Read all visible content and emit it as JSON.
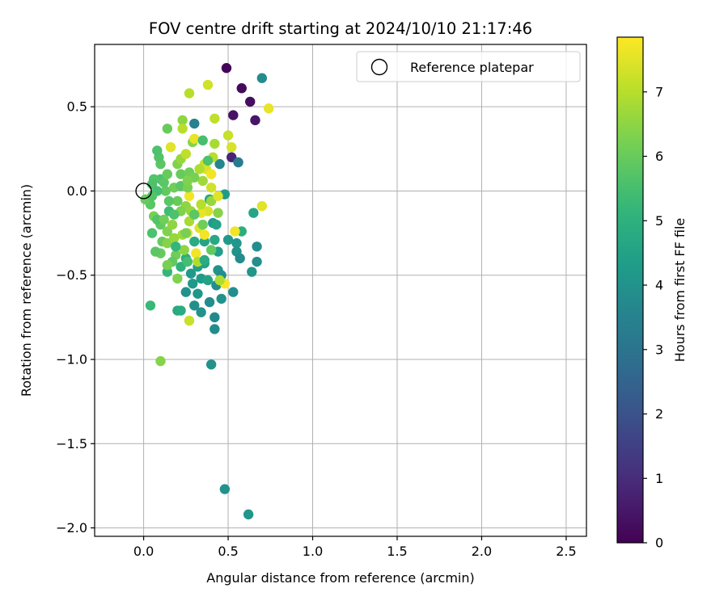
{
  "chart_data": {
    "type": "scatter",
    "title": "FOV centre drift starting at 2024/10/10 21:17:46",
    "xlabel": "Angular distance from reference (arcmin)",
    "ylabel": "Rotation from reference (arcmin)",
    "xlim": [
      -0.29,
      2.62
    ],
    "ylim": [
      -2.05,
      0.87
    ],
    "xticks": [
      0.0,
      0.5,
      1.0,
      1.5,
      2.0,
      2.5
    ],
    "xtick_labels": [
      "0.0",
      "0.5",
      "1.0",
      "1.5",
      "2.0",
      "2.5"
    ],
    "yticks": [
      0.5,
      0.0,
      -0.5,
      -1.0,
      -1.5,
      -2.0
    ],
    "ytick_labels": [
      "0.5",
      "0.0",
      "−0.5",
      "−1.0",
      "−1.5",
      "−2.0"
    ],
    "grid": true,
    "legend": {
      "position": "top-right",
      "label": "Reference platepar"
    },
    "reference_point": {
      "x": 0.0,
      "y": 0.0
    },
    "colorbar": {
      "label": "Hours from first FF file",
      "range": [
        0,
        7.85
      ],
      "ticks": [
        0,
        1,
        2,
        3,
        4,
        5,
        6,
        7
      ],
      "tick_labels": [
        "0",
        "1",
        "2",
        "3",
        "4",
        "5",
        "6",
        "7"
      ],
      "colormap": "viridis",
      "colors": [
        "#440154",
        "#482878",
        "#3e4989",
        "#31688e",
        "#26828e",
        "#1f9e89",
        "#35b779",
        "#6ece58",
        "#b5de2b",
        "#fde725"
      ]
    },
    "points": [
      {
        "x": 0.49,
        "y": 0.73,
        "h": 0.1
      },
      {
        "x": 0.58,
        "y": 0.61,
        "h": 0.2
      },
      {
        "x": 0.63,
        "y": 0.53,
        "h": 0.3
      },
      {
        "x": 0.53,
        "y": 0.45,
        "h": 0.4
      },
      {
        "x": 0.66,
        "y": 0.42,
        "h": 0.5
      },
      {
        "x": 0.52,
        "y": 0.2,
        "h": 0.8
      },
      {
        "x": 0.7,
        "y": 0.67,
        "h": 3.8
      },
      {
        "x": 0.3,
        "y": 0.4,
        "h": 3.5
      },
      {
        "x": 0.56,
        "y": 0.17,
        "h": 3.3
      },
      {
        "x": 0.45,
        "y": 0.16,
        "h": 3.6
      },
      {
        "x": 0.48,
        "y": -0.02,
        "h": 4.3
      },
      {
        "x": 0.65,
        "y": -0.13,
        "h": 4.6
      },
      {
        "x": 0.58,
        "y": -0.24,
        "h": 4.9
      },
      {
        "x": 0.5,
        "y": -0.29,
        "h": 4.2
      },
      {
        "x": 0.55,
        "y": -0.31,
        "h": 4.1
      },
      {
        "x": 0.67,
        "y": -0.33,
        "h": 3.9
      },
      {
        "x": 0.55,
        "y": -0.36,
        "h": 4.0
      },
      {
        "x": 0.57,
        "y": -0.4,
        "h": 3.8
      },
      {
        "x": 0.67,
        "y": -0.42,
        "h": 3.9
      },
      {
        "x": 0.64,
        "y": -0.48,
        "h": 4.1
      },
      {
        "x": 0.44,
        "y": -0.36,
        "h": 4.4
      },
      {
        "x": 0.44,
        "y": -0.47,
        "h": 4.0
      },
      {
        "x": 0.46,
        "y": -0.5,
        "h": 3.9
      },
      {
        "x": 0.43,
        "y": -0.56,
        "h": 3.8
      },
      {
        "x": 0.53,
        "y": -0.6,
        "h": 3.9
      },
      {
        "x": 0.46,
        "y": -0.64,
        "h": 4.0
      },
      {
        "x": 0.39,
        "y": -0.66,
        "h": 3.8
      },
      {
        "x": 0.3,
        "y": -0.68,
        "h": 3.9
      },
      {
        "x": 0.34,
        "y": -0.72,
        "h": 4.0
      },
      {
        "x": 0.42,
        "y": -0.75,
        "h": 3.7
      },
      {
        "x": 0.42,
        "y": -0.82,
        "h": 3.8
      },
      {
        "x": 0.25,
        "y": -0.6,
        "h": 4.0
      },
      {
        "x": 0.32,
        "y": -0.61,
        "h": 4.1
      },
      {
        "x": 0.29,
        "y": -0.55,
        "h": 4.2
      },
      {
        "x": 0.34,
        "y": -0.52,
        "h": 4.3
      },
      {
        "x": 0.38,
        "y": -0.53,
        "h": 4.5
      },
      {
        "x": 0.28,
        "y": -0.49,
        "h": 4.2
      },
      {
        "x": 0.32,
        "y": -0.45,
        "h": 4.4
      },
      {
        "x": 0.4,
        "y": -1.03,
        "h": 4.0
      },
      {
        "x": 0.48,
        "y": -1.77,
        "h": 4.0
      },
      {
        "x": 0.62,
        "y": -1.92,
        "h": 4.1
      },
      {
        "x": 0.41,
        "y": -0.19,
        "h": 4.3
      },
      {
        "x": 0.43,
        "y": -0.2,
        "h": 4.5
      },
      {
        "x": 0.39,
        "y": -0.05,
        "h": 4.7
      },
      {
        "x": 0.36,
        "y": -0.3,
        "h": 4.6
      },
      {
        "x": 0.42,
        "y": -0.29,
        "h": 4.7
      },
      {
        "x": 0.3,
        "y": -0.3,
        "h": 4.8
      },
      {
        "x": 0.25,
        "y": -0.4,
        "h": 4.9
      },
      {
        "x": 0.36,
        "y": -0.43,
        "h": 4.5
      },
      {
        "x": 0.22,
        "y": -0.45,
        "h": 5.0
      },
      {
        "x": 0.14,
        "y": -0.48,
        "h": 5.2
      },
      {
        "x": 0.2,
        "y": -0.71,
        "h": 4.7
      },
      {
        "x": 0.22,
        "y": -0.71,
        "h": 4.8
      },
      {
        "x": 0.04,
        "y": -0.68,
        "h": 5.3
      },
      {
        "x": 0.1,
        "y": -1.01,
        "h": 6.4
      },
      {
        "x": 0.27,
        "y": -0.77,
        "h": 7.2
      },
      {
        "x": 0.19,
        "y": -0.38,
        "h": 6.1
      },
      {
        "x": 0.17,
        "y": -0.42,
        "h": 5.9
      },
      {
        "x": 0.2,
        "y": -0.52,
        "h": 6.3
      },
      {
        "x": 0.14,
        "y": -0.44,
        "h": 6.2
      },
      {
        "x": 0.1,
        "y": -0.37,
        "h": 6.0
      },
      {
        "x": 0.07,
        "y": -0.36,
        "h": 5.8
      },
      {
        "x": 0.11,
        "y": -0.3,
        "h": 6.0
      },
      {
        "x": 0.14,
        "y": -0.31,
        "h": 6.4
      },
      {
        "x": 0.18,
        "y": -0.28,
        "h": 6.6
      },
      {
        "x": 0.05,
        "y": -0.25,
        "h": 5.6
      },
      {
        "x": 0.1,
        "y": -0.2,
        "h": 5.9
      },
      {
        "x": 0.06,
        "y": -0.15,
        "h": 6.2
      },
      {
        "x": 0.04,
        "y": -0.08,
        "h": 5.8
      },
      {
        "x": 0.01,
        "y": -0.05,
        "h": 6.0
      },
      {
        "x": 0.08,
        "y": -0.17,
        "h": 5.7
      },
      {
        "x": 0.12,
        "y": -0.17,
        "h": 6.1
      },
      {
        "x": 0.14,
        "y": -0.24,
        "h": 6.3
      },
      {
        "x": 0.17,
        "y": -0.2,
        "h": 6.5
      },
      {
        "x": 0.23,
        "y": -0.26,
        "h": 6.7
      },
      {
        "x": 0.26,
        "y": -0.25,
        "h": 7.6
      },
      {
        "x": 0.31,
        "y": -0.37,
        "h": 7.7
      },
      {
        "x": 0.32,
        "y": -0.42,
        "h": 6.9
      },
      {
        "x": 0.24,
        "y": -0.35,
        "h": 6.5
      },
      {
        "x": 0.27,
        "y": -0.18,
        "h": 6.8
      },
      {
        "x": 0.33,
        "y": -0.22,
        "h": 7.5
      },
      {
        "x": 0.36,
        "y": -0.26,
        "h": 7.7
      },
      {
        "x": 0.38,
        "y": -0.12,
        "h": 7.4
      },
      {
        "x": 0.34,
        "y": -0.13,
        "h": 7.6
      },
      {
        "x": 0.34,
        "y": -0.08,
        "h": 7.0
      },
      {
        "x": 0.4,
        "y": -0.06,
        "h": 6.6
      },
      {
        "x": 0.44,
        "y": -0.13,
        "h": 6.4
      },
      {
        "x": 0.44,
        "y": -0.03,
        "h": 7.5
      },
      {
        "x": 0.4,
        "y": 0.02,
        "h": 7.3
      },
      {
        "x": 0.27,
        "y": -0.03,
        "h": 7.7
      },
      {
        "x": 0.25,
        "y": -0.09,
        "h": 6.5
      },
      {
        "x": 0.22,
        "y": -0.12,
        "h": 6.3
      },
      {
        "x": 0.28,
        "y": -0.12,
        "h": 6.6
      },
      {
        "x": 0.2,
        "y": -0.06,
        "h": 6.0
      },
      {
        "x": 0.15,
        "y": -0.06,
        "h": 5.8
      },
      {
        "x": 0.13,
        "y": 0.0,
        "h": 5.9
      },
      {
        "x": 0.18,
        "y": 0.02,
        "h": 6.1
      },
      {
        "x": 0.22,
        "y": 0.03,
        "h": 5.8
      },
      {
        "x": 0.26,
        "y": 0.02,
        "h": 6.2
      },
      {
        "x": 0.1,
        "y": 0.07,
        "h": 5.6
      },
      {
        "x": 0.06,
        "y": 0.07,
        "h": 5.7
      },
      {
        "x": 0.12,
        "y": 0.05,
        "h": 5.8
      },
      {
        "x": 0.05,
        "y": 0.04,
        "h": 5.6
      },
      {
        "x": 0.08,
        "y": 0.0,
        "h": 5.5
      },
      {
        "x": 0.05,
        "y": -0.03,
        "h": 5.7
      },
      {
        "x": 0.22,
        "y": 0.1,
        "h": 6.0
      },
      {
        "x": 0.27,
        "y": 0.11,
        "h": 6.1
      },
      {
        "x": 0.2,
        "y": 0.16,
        "h": 6.3
      },
      {
        "x": 0.1,
        "y": 0.16,
        "h": 5.8
      },
      {
        "x": 0.09,
        "y": 0.2,
        "h": 5.7
      },
      {
        "x": 0.08,
        "y": 0.24,
        "h": 5.6
      },
      {
        "x": 0.14,
        "y": 0.1,
        "h": 6.0
      },
      {
        "x": 0.16,
        "y": 0.26,
        "h": 7.5
      },
      {
        "x": 0.22,
        "y": 0.19,
        "h": 6.6
      },
      {
        "x": 0.25,
        "y": 0.22,
        "h": 7.1
      },
      {
        "x": 0.29,
        "y": 0.29,
        "h": 6.4
      },
      {
        "x": 0.3,
        "y": 0.31,
        "h": 7.6
      },
      {
        "x": 0.35,
        "y": 0.3,
        "h": 5.5
      },
      {
        "x": 0.42,
        "y": 0.28,
        "h": 6.8
      },
      {
        "x": 0.41,
        "y": 0.2,
        "h": 7.0
      },
      {
        "x": 0.36,
        "y": 0.16,
        "h": 7.2
      },
      {
        "x": 0.37,
        "y": 0.13,
        "h": 7.4
      },
      {
        "x": 0.33,
        "y": 0.13,
        "h": 6.9
      },
      {
        "x": 0.4,
        "y": 0.1,
        "h": 7.7
      },
      {
        "x": 0.38,
        "y": 0.18,
        "h": 5.6
      },
      {
        "x": 0.35,
        "y": 0.06,
        "h": 6.7
      },
      {
        "x": 0.3,
        "y": 0.08,
        "h": 6.2
      },
      {
        "x": 0.26,
        "y": 0.06,
        "h": 6.3
      },
      {
        "x": 0.23,
        "y": 0.42,
        "h": 6.5
      },
      {
        "x": 0.23,
        "y": 0.37,
        "h": 7.0
      },
      {
        "x": 0.14,
        "y": 0.37,
        "h": 6.0
      },
      {
        "x": 0.27,
        "y": 0.58,
        "h": 7.0
      },
      {
        "x": 0.38,
        "y": 0.63,
        "h": 7.3
      },
      {
        "x": 0.42,
        "y": 0.43,
        "h": 7.1
      },
      {
        "x": 0.5,
        "y": 0.33,
        "h": 7.2
      },
      {
        "x": 0.52,
        "y": 0.26,
        "h": 7.4
      },
      {
        "x": 0.74,
        "y": 0.49,
        "h": 7.6
      },
      {
        "x": 0.7,
        "y": -0.09,
        "h": 7.5
      },
      {
        "x": 0.54,
        "y": -0.24,
        "h": 7.7
      },
      {
        "x": 0.48,
        "y": -0.55,
        "h": 7.8
      },
      {
        "x": 0.45,
        "y": -0.53,
        "h": 6.9
      },
      {
        "x": 0.25,
        "y": -0.25,
        "h": 6.2
      },
      {
        "x": 0.3,
        "y": -0.14,
        "h": 5.8
      },
      {
        "x": 0.35,
        "y": -0.2,
        "h": 6.1
      },
      {
        "x": 0.4,
        "y": -0.35,
        "h": 5.9
      },
      {
        "x": 0.36,
        "y": -0.41,
        "h": 4.8
      },
      {
        "x": 0.26,
        "y": -0.42,
        "h": 5.5
      },
      {
        "x": 0.19,
        "y": -0.33,
        "h": 5.2
      },
      {
        "x": 0.15,
        "y": -0.12,
        "h": 5.4
      },
      {
        "x": 0.18,
        "y": -0.14,
        "h": 5.6
      }
    ]
  }
}
